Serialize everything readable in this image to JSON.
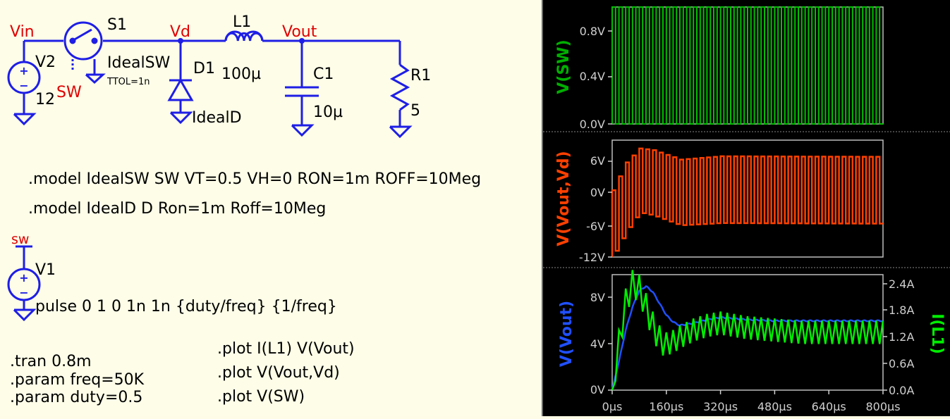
{
  "schematic": {
    "nets": {
      "vin": "Vin",
      "vd": "Vd",
      "vout": "Vout",
      "sw_label": "SW",
      "sw_net": "sw"
    },
    "v2": {
      "name": "V2",
      "value": "12"
    },
    "s1": {
      "name": "S1",
      "model": "IdealSW",
      "param": "TTOL=1n"
    },
    "d1": {
      "name": "D1",
      "model": "IdealD"
    },
    "l1": {
      "name": "L1",
      "value": "100µ"
    },
    "c1": {
      "name": "C1",
      "value": "10µ"
    },
    "r1": {
      "name": "R1",
      "value": "5"
    },
    "v1": {
      "name": "V1",
      "value": "pulse 0 1 0 1n 1n {duty/freq} {1/freq}"
    },
    "directives": {
      "model_sw": ".model IdealSW SW VT=0.5 VH=0 RON=1m ROFF=10Meg",
      "model_d": ".model IdealD D Ron=1m Roff=10Meg",
      "tran": ".tran 0.8m",
      "param_freq": ".param freq=50K",
      "param_duty": ".param duty=0.5",
      "plot1": ".plot I(L1) V(Vout)",
      "plot2": ".plot V(Vout,Vd)",
      "plot3": ".plot V(SW)"
    },
    "colors": {
      "wire": "#1e1ee6",
      "net_label": "#e00000",
      "text": "#000000",
      "bg": "#fdfde8"
    }
  },
  "chart_data": [
    {
      "type": "line",
      "ylabel": "V(SW)",
      "ylim": [
        0,
        1
      ],
      "yticks": [
        "0.0V",
        "0.4V",
        "0.8V"
      ],
      "series": [
        {
          "name": "V(SW)",
          "color": "#00c000",
          "description": "square wave 0 to 1 V, 50% duty, 50 kHz",
          "low": 0,
          "high": 1
        }
      ]
    },
    {
      "type": "line",
      "ylabel": "V(Vout,Vd)",
      "ylim": [
        -12,
        9
      ],
      "yticks": [
        "-12V",
        "-6V",
        "0V",
        "6V"
      ],
      "series": [
        {
          "name": "V(Vout,Vd)",
          "color": "#ff4000",
          "envelope_points": [
            {
              "t": 0,
              "high": 0,
              "low": -12
            },
            {
              "t": 40,
              "high": 5,
              "low": -7.5
            },
            {
              "t": 80,
              "high": 7.5,
              "low": -4
            },
            {
              "t": 120,
              "high": 7.2,
              "low": -4.5
            },
            {
              "t": 200,
              "high": 5.5,
              "low": -6.3
            },
            {
              "t": 320,
              "high": 6.1,
              "low": -5.9
            },
            {
              "t": 800,
              "high": 6,
              "low": -6
            }
          ]
        }
      ]
    },
    {
      "type": "line",
      "ylabel": "V(Vout)",
      "ylabel_right": "I(L1)",
      "ylim": [
        0,
        10
      ],
      "ylim_right": [
        0,
        2.5
      ],
      "yticks": [
        "0V",
        "4V",
        "8V"
      ],
      "yticks_right": [
        "0.0A",
        "0.6A",
        "1.2A",
        "1.8A",
        "2.4A"
      ],
      "xticks": [
        "0µs",
        "160µs",
        "320µs",
        "480µs",
        "640µs",
        "800µs"
      ],
      "series": [
        {
          "name": "V(Vout)",
          "color": "#2050ff",
          "x": [
            0,
            20,
            40,
            60,
            80,
            100,
            120,
            140,
            160,
            180,
            200,
            240,
            280,
            320,
            400,
            480,
            560,
            640,
            720,
            800
          ],
          "y": [
            0,
            2.5,
            5.2,
            7.2,
            8.6,
            9.0,
            8.5,
            7.5,
            6.5,
            5.9,
            5.6,
            5.8,
            6.1,
            6.3,
            6.1,
            6.0,
            6.0,
            6.0,
            6.0,
            6.0
          ]
        },
        {
          "name": "I(L1)",
          "color": "#00ee00",
          "x": [
            0,
            20,
            40,
            60,
            80,
            100,
            120,
            140,
            160,
            180,
            200,
            240,
            280,
            320,
            400,
            480,
            560,
            640,
            720,
            800
          ],
          "y": [
            0,
            1.0,
            1.9,
            2.3,
            2.2,
            1.8,
            1.4,
            1.1,
            1.0,
            1.05,
            1.15,
            1.3,
            1.4,
            1.45,
            1.35,
            1.3,
            1.25,
            1.25,
            1.25,
            1.25
          ],
          "ripple_amp": 0.25
        }
      ]
    }
  ]
}
